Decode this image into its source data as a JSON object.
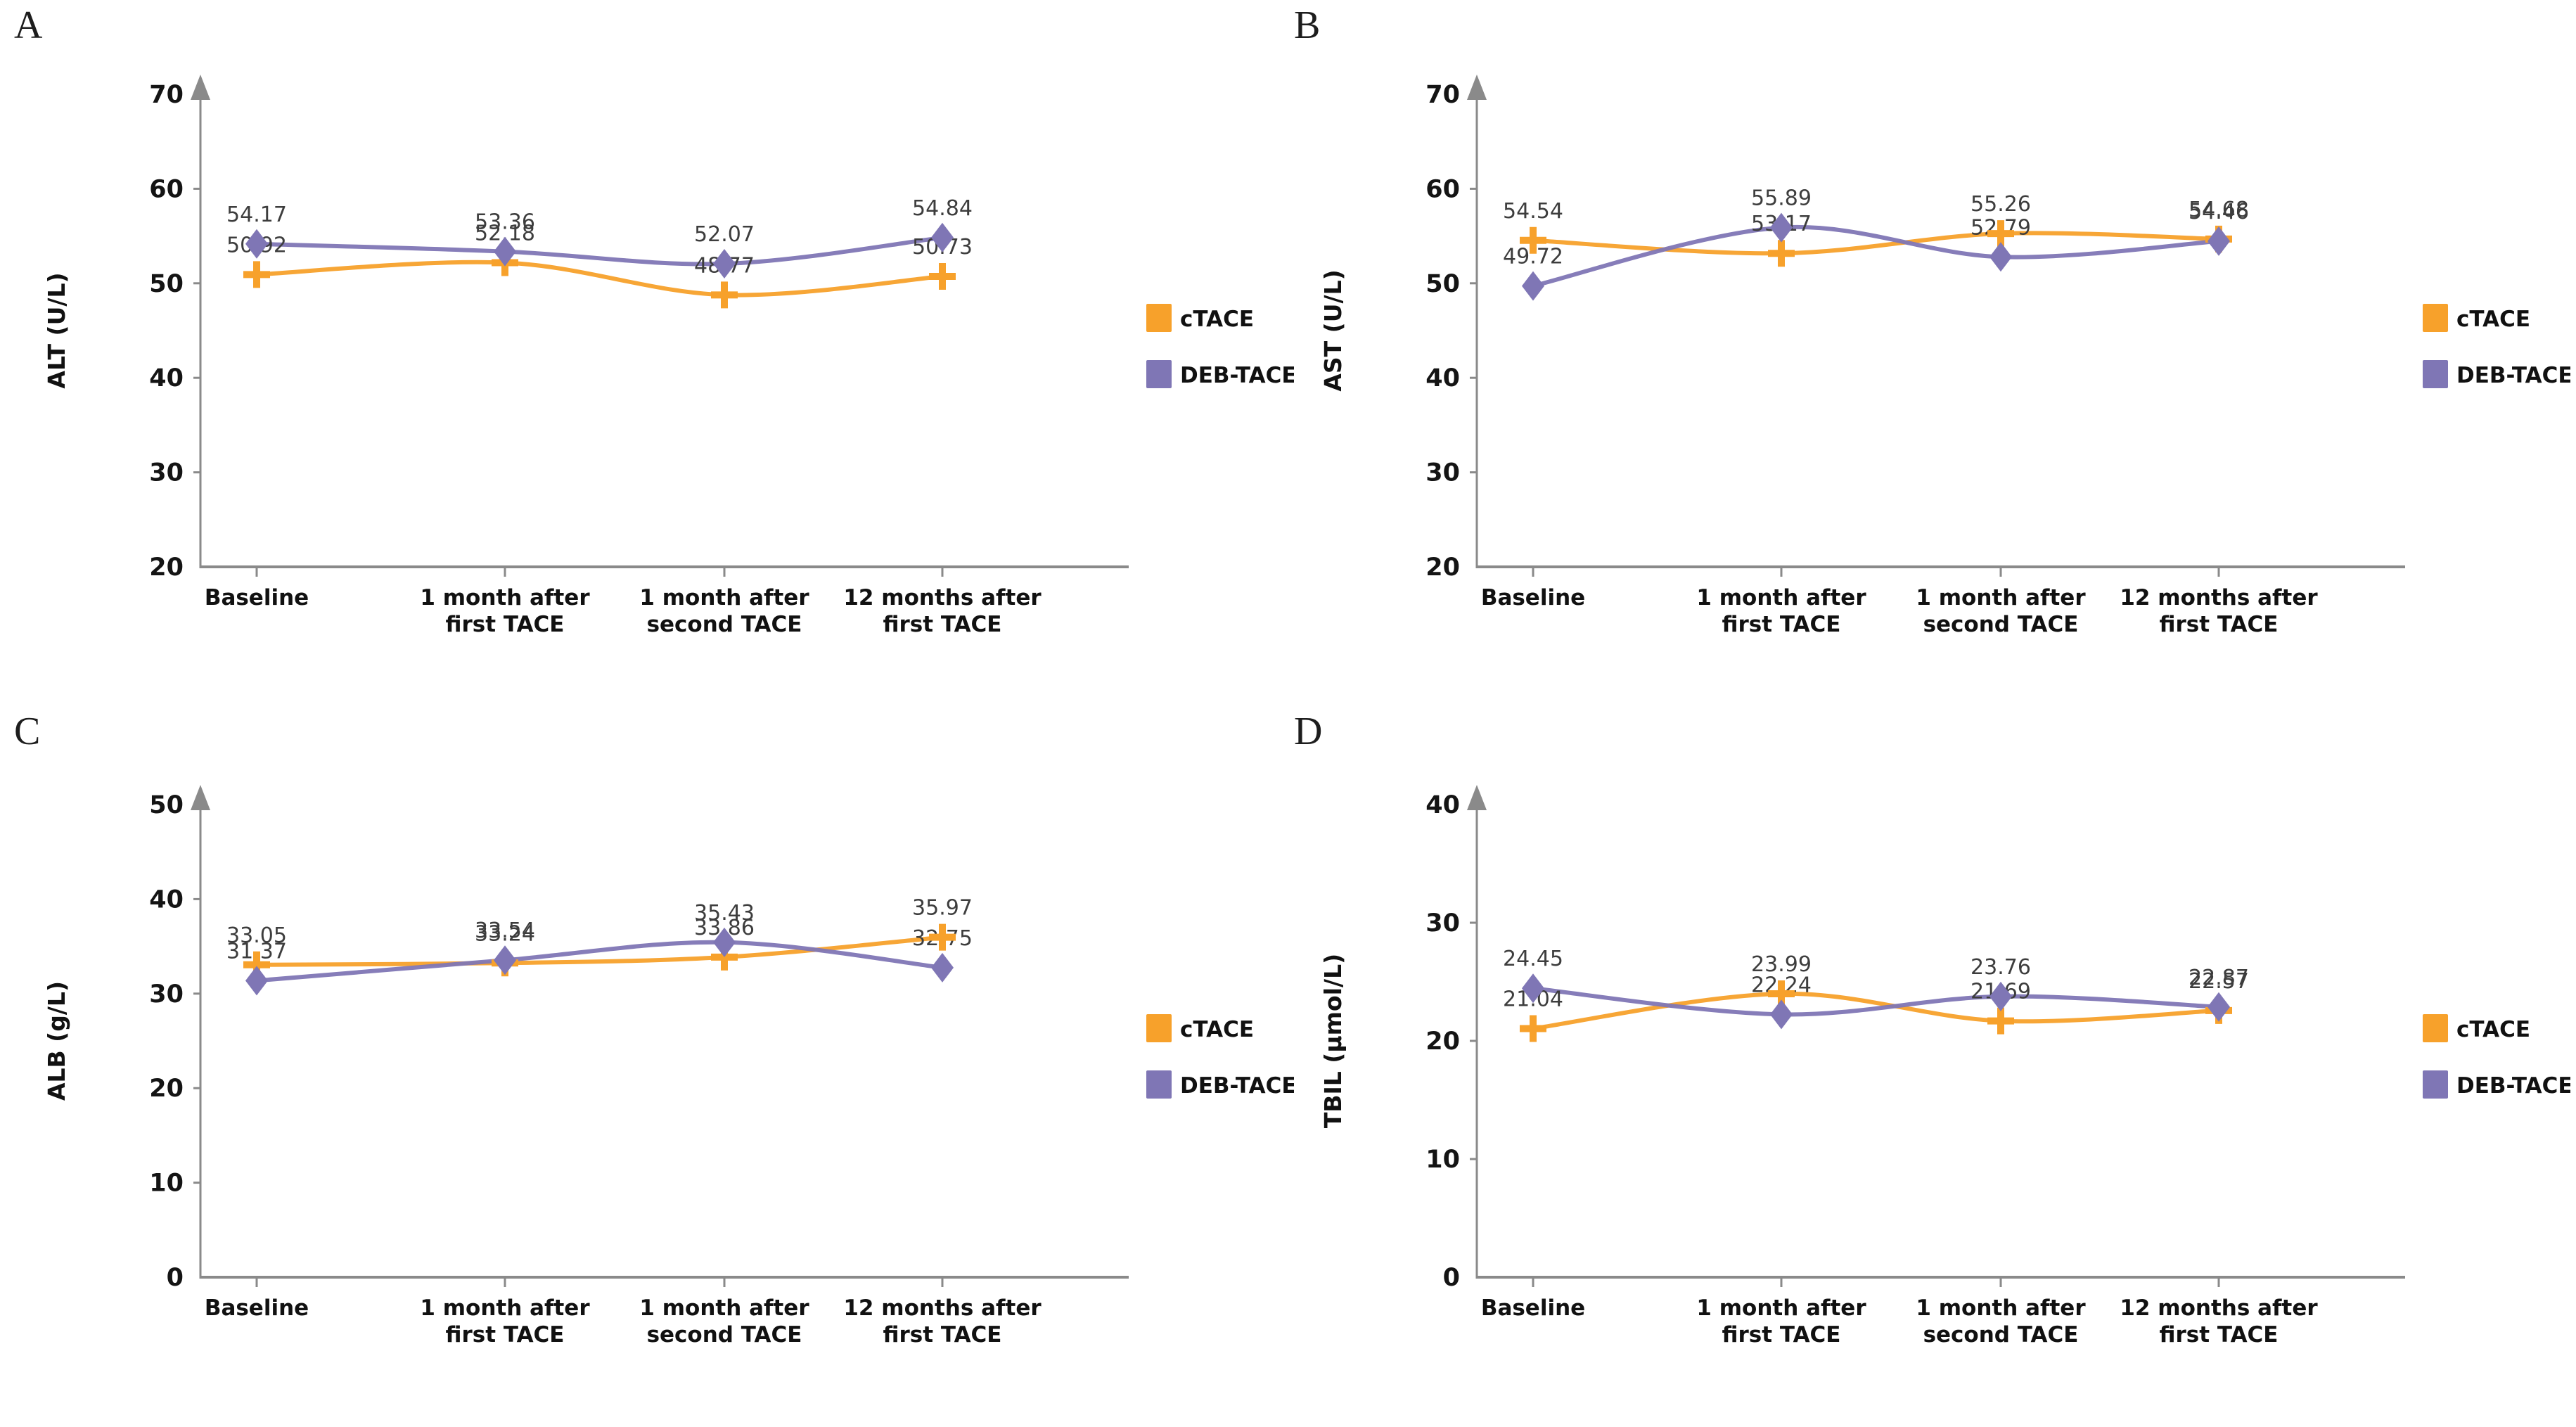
{
  "figure": {
    "background": "#ffffff"
  },
  "legend": {
    "items": [
      {
        "label": "cTACE",
        "color": "#F7A12B",
        "marker": "plus"
      },
      {
        "label": "DEB-TACE",
        "color": "#7F76B5",
        "marker": "diamond"
      }
    ]
  },
  "categories": [
    [
      "Baseline"
    ],
    [
      "1 month after",
      "first TACE"
    ],
    [
      "1 month after",
      "second TACE"
    ],
    [
      "12 months after",
      "first TACE"
    ]
  ],
  "axis_color": "#8a8a8a",
  "tick_text_color": "#141414",
  "data_label_color": "#3d3d3d",
  "chart_data": [
    {
      "type": "line",
      "panel": "A",
      "title": "",
      "ylabel": "ALT (U/L)",
      "xlabel": "",
      "ylim": [
        20,
        70
      ],
      "ytick_step": 10,
      "grid": false,
      "legend_position": "right",
      "categories": [
        "Baseline",
        "1 month after first TACE",
        "1 month after second TACE",
        "12 months after first TACE"
      ],
      "series": [
        {
          "name": "cTACE",
          "values": [
            50.92,
            52.18,
            48.77,
            50.73
          ]
        },
        {
          "name": "DEB-TACE",
          "values": [
            54.17,
            53.36,
            52.07,
            54.84
          ]
        }
      ]
    },
    {
      "type": "line",
      "panel": "B",
      "title": "",
      "ylabel": "AST (U/L)",
      "xlabel": "",
      "ylim": [
        20,
        70
      ],
      "ytick_step": 10,
      "grid": false,
      "legend_position": "right",
      "categories": [
        "Baseline",
        "1 month after first TACE",
        "1 month after second TACE",
        "12 months after first TACE"
      ],
      "series": [
        {
          "name": "cTACE",
          "values": [
            54.54,
            53.17,
            55.26,
            54.68
          ]
        },
        {
          "name": "DEB-TACE",
          "values": [
            49.72,
            55.89,
            52.79,
            54.46
          ]
        }
      ]
    },
    {
      "type": "line",
      "panel": "C",
      "title": "",
      "ylabel": "ALB (g/L)",
      "xlabel": "",
      "ylim": [
        0,
        50
      ],
      "ytick_step": 10,
      "grid": false,
      "legend_position": "right",
      "categories": [
        "Baseline",
        "1 month after first TACE",
        "1 month after second TACE",
        "12 months after first TACE"
      ],
      "series": [
        {
          "name": "cTACE",
          "values": [
            33.05,
            33.24,
            33.86,
            35.97
          ]
        },
        {
          "name": "DEB-TACE",
          "values": [
            31.37,
            33.54,
            35.43,
            32.75
          ]
        }
      ]
    },
    {
      "type": "line",
      "panel": "D",
      "title": "",
      "ylabel": "TBIL (µmol/L)",
      "xlabel": "",
      "ylim": [
        0,
        40
      ],
      "ytick_step": 10,
      "grid": false,
      "legend_position": "right",
      "categories": [
        "Baseline",
        "1 month after first TACE",
        "1 month after second TACE",
        "12 months after first TACE"
      ],
      "series": [
        {
          "name": "cTACE",
          "values": [
            21.04,
            23.99,
            21.69,
            22.57
          ]
        },
        {
          "name": "DEB-TACE",
          "values": [
            24.45,
            22.24,
            23.76,
            22.87
          ]
        }
      ]
    }
  ]
}
